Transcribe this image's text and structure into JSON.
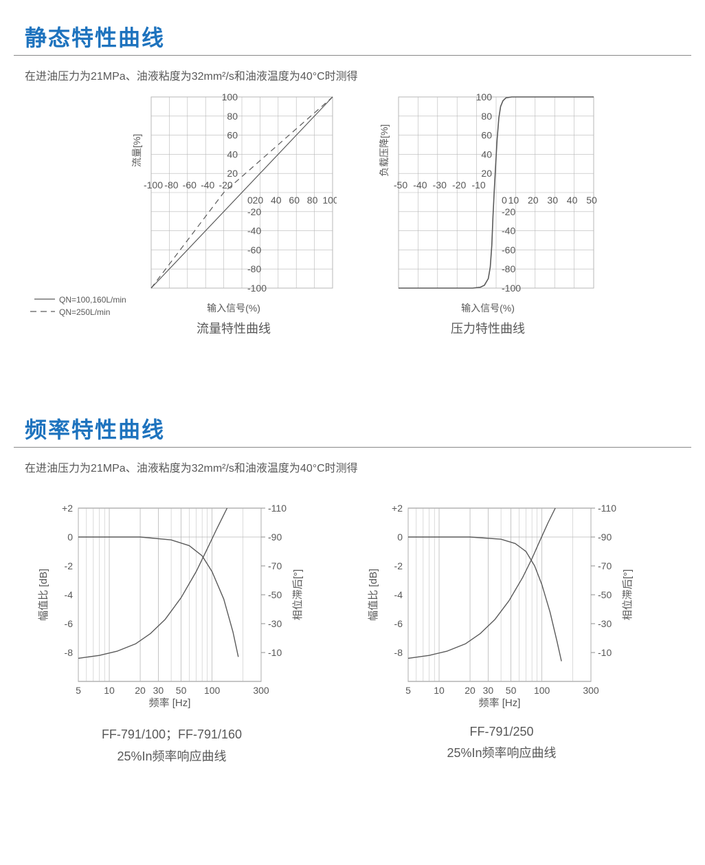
{
  "section1": {
    "title": "静态特性曲线",
    "conditions": "在进油压力为21MPa、油液粘度为32mm²/s和油液温度为40°C时测得"
  },
  "flow_chart": {
    "type": "line",
    "ylabel": "流量[%]",
    "xlabel": "输入信号(%)",
    "title": "流量特性曲线",
    "xlim": [
      -100,
      100
    ],
    "ylim": [
      -100,
      100
    ],
    "xtick_step": 20,
    "ytick_step": 20,
    "grid_color": "#b7b7b7",
    "axis_color": "#8c8c8c",
    "line_color": "#5a5a5a",
    "line_width": 1.2,
    "dash_width": 1.2,
    "tick_fontsize": 14,
    "label_fontsize": 14,
    "legend": [
      {
        "label": "QN=100,160L/min",
        "style": "solid"
      },
      {
        "label": "QN=250L/min",
        "style": "dashed"
      }
    ],
    "series_solid": [
      [
        -100,
        -100
      ],
      [
        100,
        100
      ]
    ],
    "series_dashed": [
      [
        -100,
        -100
      ],
      [
        -20,
        0
      ],
      [
        100,
        100
      ]
    ]
  },
  "pressure_chart": {
    "type": "line",
    "ylabel": "负载压降[%]",
    "xlabel": "输入信号(%)",
    "title": "压力特性曲线",
    "xlim": [
      -50,
      50
    ],
    "ylim": [
      -100,
      100
    ],
    "xtick_step": 10,
    "ytick_step": 20,
    "grid_color": "#b7b7b7",
    "axis_color": "#8c8c8c",
    "line_color": "#5a5a5a",
    "line_width": 1.6,
    "tick_fontsize": 14,
    "label_fontsize": 14,
    "series": [
      [
        -50,
        -100
      ],
      [
        -12,
        -100
      ],
      [
        -8,
        -99
      ],
      [
        -6,
        -97
      ],
      [
        -4,
        -90
      ],
      [
        -3,
        -78
      ],
      [
        -2.2,
        -55
      ],
      [
        -1.6,
        -25
      ],
      [
        -1,
        0
      ],
      [
        -0.2,
        30
      ],
      [
        0.5,
        55
      ],
      [
        1.4,
        78
      ],
      [
        2.3,
        90
      ],
      [
        3.5,
        96
      ],
      [
        5,
        99
      ],
      [
        8,
        100
      ],
      [
        50,
        100
      ]
    ]
  },
  "section2": {
    "title": "频率特性曲线",
    "conditions": "在进油压力为21MPa、油液粘度为32mm²/s和油液温度为40°C时测得"
  },
  "bode_common": {
    "type": "bode",
    "xlabel": "频率 [Hz]",
    "ylabel_left": "幅值比 [dB]",
    "ylabel_right": "相位滞后[°]",
    "xlim": [
      5,
      300
    ],
    "ylim_db": [
      -10,
      2
    ],
    "db_ticks": [
      2,
      0,
      -2,
      -4,
      -6,
      -8
    ],
    "phase_ticks": [
      -110,
      -90,
      -70,
      -50,
      -30,
      -10
    ],
    "x_ticks": [
      5,
      10,
      20,
      30,
      50,
      100,
      300
    ],
    "minor_ticks": [
      6,
      7,
      8,
      9,
      40,
      60,
      70,
      80,
      90,
      200
    ],
    "grid_color": "#b7b7b7",
    "axis_color": "#8c8c8c",
    "line_color": "#5a5a5a",
    "line_width": 1.4,
    "tick_fontsize": 14,
    "label_fontsize": 15
  },
  "bode_left": {
    "subtitle": "FF-791/100；FF-791/160",
    "caption": "25%In频率响应曲线",
    "magnitude": [
      [
        5,
        0
      ],
      [
        20,
        0
      ],
      [
        40,
        -0.2
      ],
      [
        60,
        -0.6
      ],
      [
        80,
        -1.3
      ],
      [
        100,
        -2.4
      ],
      [
        130,
        -4.3
      ],
      [
        160,
        -6.6
      ],
      [
        180,
        -8.3
      ]
    ],
    "phase": [
      [
        5,
        -6
      ],
      [
        8,
        -8
      ],
      [
        12,
        -11
      ],
      [
        18,
        -16
      ],
      [
        25,
        -23
      ],
      [
        35,
        -33
      ],
      [
        50,
        -48
      ],
      [
        70,
        -66
      ],
      [
        90,
        -82
      ],
      [
        110,
        -95
      ],
      [
        140,
        -110
      ]
    ]
  },
  "bode_right": {
    "subtitle": "FF-791/250",
    "caption": "25%In频率响应曲线",
    "magnitude": [
      [
        5,
        0
      ],
      [
        20,
        0
      ],
      [
        40,
        -0.15
      ],
      [
        55,
        -0.45
      ],
      [
        70,
        -1.0
      ],
      [
        85,
        -2.0
      ],
      [
        100,
        -3.3
      ],
      [
        120,
        -5.2
      ],
      [
        140,
        -7.2
      ],
      [
        155,
        -8.6
      ]
    ],
    "phase": [
      [
        5,
        -6
      ],
      [
        8,
        -8
      ],
      [
        12,
        -11
      ],
      [
        18,
        -16
      ],
      [
        25,
        -23
      ],
      [
        35,
        -33
      ],
      [
        48,
        -46
      ],
      [
        65,
        -62
      ],
      [
        80,
        -75
      ],
      [
        95,
        -87
      ],
      [
        115,
        -100
      ],
      [
        135,
        -110
      ]
    ]
  }
}
